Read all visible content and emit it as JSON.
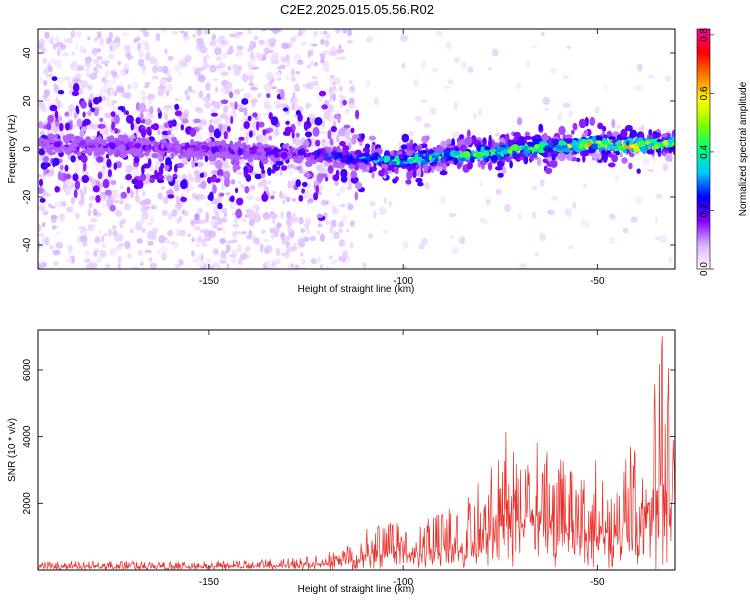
{
  "title": "C2E2.2025.015.05.56.R02",
  "chart_data": [
    {
      "type": "heatmap",
      "xlabel": "Height of straight line (km)",
      "ylabel": "Frequency (Hz)",
      "xlim": [
        -194,
        -30
      ],
      "ylim": [
        -50,
        50
      ],
      "xticks": [
        -150,
        -100,
        -50
      ],
      "yticks": [
        -40,
        -20,
        0,
        20,
        40
      ],
      "colorbar": {
        "label": "Normalized spectral amplitude",
        "range": [
          0.0,
          0.82
        ],
        "ticks": [
          0.0,
          0.2,
          0.4,
          0.6,
          0.8
        ],
        "colors": [
          "#ffffff",
          "#d9b3ff",
          "#8000ff",
          "#0000ff",
          "#00c8ff",
          "#00ff80",
          "#80ff00",
          "#ffff00",
          "#ff8000",
          "#ff0000",
          "#ff00a0"
        ]
      },
      "ridge": {
        "x": [
          -194,
          -170,
          -150,
          -130,
          -110,
          -100,
          -90,
          -80,
          -70,
          -60,
          -50,
          -40,
          -30
        ],
        "center_freq": [
          2,
          1,
          0,
          -2,
          -4,
          -5,
          -3,
          -2,
          0,
          1,
          2,
          1,
          2
        ],
        "peak_amplitude": [
          0.2,
          0.2,
          0.22,
          0.25,
          0.35,
          0.55,
          0.5,
          0.55,
          0.6,
          0.65,
          0.7,
          0.75,
          0.6
        ]
      },
      "noise_cutoff_x": -113
    },
    {
      "type": "line",
      "xlabel": "Height of straight line (km)",
      "ylabel": "SNR (10 * v/v)",
      "xlim": [
        -194,
        -30
      ],
      "ylim": [
        0,
        7200
      ],
      "xticks": [
        -150,
        -100,
        -50
      ],
      "yticks": [
        2000,
        4000,
        6000
      ],
      "color": "#e8302a",
      "envelope": {
        "x": [
          -194,
          -180,
          -160,
          -140,
          -130,
          -120,
          -112,
          -108,
          -102,
          -98,
          -94,
          -90,
          -86,
          -82,
          -78,
          -74,
          -70,
          -66,
          -62,
          -58,
          -54,
          -50,
          -46,
          -42,
          -38,
          -35,
          -33,
          -31,
          -30
        ],
        "peak": [
          250,
          280,
          250,
          300,
          350,
          500,
          900,
          1400,
          1700,
          1200,
          1500,
          1800,
          1900,
          2400,
          3200,
          4700,
          3600,
          4300,
          3300,
          3500,
          2700,
          3400,
          2300,
          3700,
          4700,
          6000,
          7200,
          5700,
          4200
        ]
      }
    }
  ]
}
